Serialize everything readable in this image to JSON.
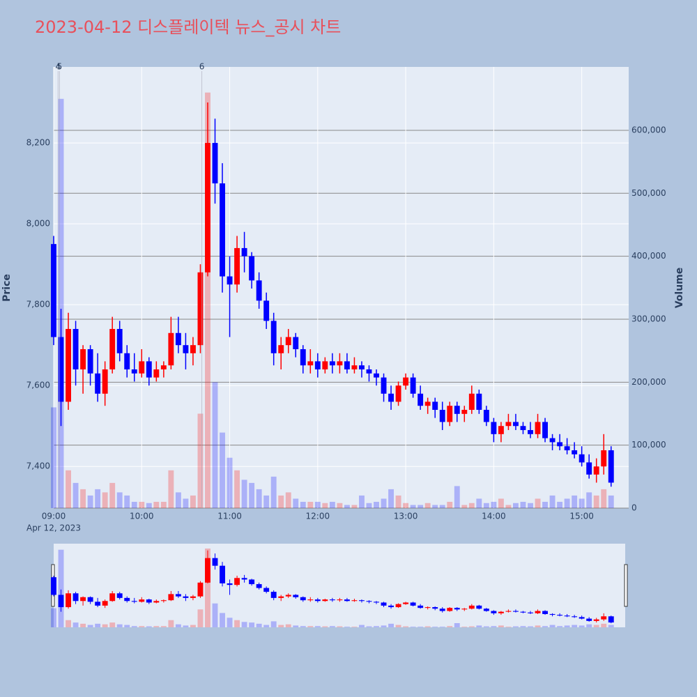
{
  "chart_data": {
    "type": "candlestick",
    "title": "2023-04-12 디스플레이텍 뉴스_공시 차트",
    "ylabel": "Price",
    "y2label": "Volume",
    "x_date_label": "Apr 12, 2023",
    "increasing_color": "#ff0000",
    "decreasing_color": "#0000ff",
    "grid": true,
    "rangeslider": true,
    "x": [
      "09:00",
      "09:05",
      "09:10",
      "09:15",
      "09:20",
      "09:25",
      "09:30",
      "09:35",
      "09:40",
      "09:45",
      "09:50",
      "09:55",
      "10:00",
      "10:05",
      "10:10",
      "10:15",
      "10:20",
      "10:25",
      "10:30",
      "10:35",
      "10:40",
      "10:45",
      "10:50",
      "10:55",
      "11:00",
      "11:05",
      "11:10",
      "11:15",
      "11:20",
      "11:25",
      "11:30",
      "11:35",
      "11:40",
      "11:45",
      "11:50",
      "11:55",
      "12:00",
      "12:05",
      "12:10",
      "12:15",
      "12:20",
      "12:25",
      "12:30",
      "12:35",
      "12:40",
      "12:45",
      "12:50",
      "12:55",
      "13:00",
      "13:05",
      "13:10",
      "13:15",
      "13:20",
      "13:25",
      "13:30",
      "13:35",
      "13:40",
      "13:45",
      "13:50",
      "13:55",
      "14:00",
      "14:05",
      "14:10",
      "14:15",
      "14:20",
      "14:25",
      "14:30",
      "14:35",
      "14:40",
      "14:45",
      "14:50",
      "14:55",
      "15:00",
      "15:05",
      "15:10",
      "15:15",
      "15:20"
    ],
    "open": [
      7950,
      7720,
      7560,
      7740,
      7640,
      7690,
      7630,
      7580,
      7640,
      7740,
      7680,
      7640,
      7630,
      7660,
      7620,
      7640,
      7650,
      7730,
      7700,
      7680,
      7700,
      7880,
      8200,
      8100,
      7870,
      7850,
      7940,
      7920,
      7860,
      7810,
      7760,
      7680,
      7700,
      7720,
      7690,
      7650,
      7660,
      7640,
      7660,
      7650,
      7660,
      7640,
      7650,
      7640,
      7630,
      7620,
      7580,
      7560,
      7600,
      7620,
      7580,
      7550,
      7560,
      7540,
      7510,
      7550,
      7530,
      7540,
      7580,
      7540,
      7510,
      7480,
      7500,
      7510,
      7500,
      7490,
      7480,
      7510,
      7470,
      7460,
      7450,
      7440,
      7430,
      7410,
      7380,
      7400,
      7440
    ],
    "high": [
      7970,
      7790,
      7780,
      7760,
      7700,
      7700,
      7680,
      7660,
      7770,
      7760,
      7700,
      7680,
      7690,
      7670,
      7660,
      7660,
      7770,
      7770,
      7730,
      7720,
      7900,
      8300,
      8260,
      8150,
      7920,
      7970,
      7980,
      7930,
      7880,
      7830,
      7780,
      7720,
      7740,
      7730,
      7700,
      7690,
      7680,
      7670,
      7680,
      7680,
      7680,
      7670,
      7660,
      7650,
      7640,
      7630,
      7600,
      7610,
      7630,
      7630,
      7600,
      7570,
      7570,
      7560,
      7560,
      7560,
      7550,
      7600,
      7590,
      7550,
      7520,
      7510,
      7530,
      7530,
      7510,
      7510,
      7530,
      7520,
      7480,
      7480,
      7470,
      7460,
      7450,
      7430,
      7420,
      7480,
      7450
    ],
    "low": [
      7700,
      7500,
      7540,
      7600,
      7580,
      7600,
      7560,
      7550,
      7630,
      7660,
      7620,
      7610,
      7620,
      7600,
      7610,
      7620,
      7640,
      7680,
      7640,
      7650,
      7680,
      7870,
      8050,
      7830,
      7720,
      7830,
      7880,
      7840,
      7790,
      7740,
      7650,
      7640,
      7680,
      7670,
      7630,
      7630,
      7620,
      7630,
      7630,
      7630,
      7630,
      7630,
      7620,
      7610,
      7600,
      7560,
      7540,
      7550,
      7590,
      7570,
      7540,
      7530,
      7520,
      7490,
      7500,
      7510,
      7510,
      7530,
      7530,
      7500,
      7460,
      7460,
      7490,
      7490,
      7480,
      7470,
      7470,
      7460,
      7440,
      7440,
      7430,
      7420,
      7400,
      7370,
      7360,
      7380,
      7350
    ],
    "close": [
      7720,
      7560,
      7740,
      7640,
      7690,
      7630,
      7580,
      7640,
      7740,
      7680,
      7640,
      7630,
      7660,
      7620,
      7640,
      7650,
      7730,
      7700,
      7680,
      7700,
      7880,
      8200,
      8100,
      7870,
      7850,
      7940,
      7920,
      7860,
      7810,
      7760,
      7680,
      7700,
      7720,
      7690,
      7650,
      7660,
      7640,
      7660,
      7650,
      7660,
      7640,
      7650,
      7640,
      7630,
      7620,
      7580,
      7560,
      7600,
      7620,
      7580,
      7550,
      7560,
      7540,
      7510,
      7550,
      7530,
      7540,
      7580,
      7540,
      7510,
      7480,
      7500,
      7510,
      7500,
      7490,
      7480,
      7510,
      7470,
      7460,
      7450,
      7440,
      7430,
      7410,
      7380,
      7400,
      7440,
      7360
    ],
    "volume": [
      160000,
      650000,
      60000,
      40000,
      30000,
      20000,
      30000,
      25000,
      40000,
      25000,
      20000,
      10000,
      10000,
      8000,
      10000,
      10000,
      60000,
      25000,
      15000,
      20000,
      150000,
      660000,
      200000,
      120000,
      80000,
      60000,
      45000,
      40000,
      30000,
      20000,
      50000,
      20000,
      25000,
      15000,
      10000,
      10000,
      10000,
      8000,
      10000,
      8000,
      5000,
      5000,
      20000,
      8000,
      10000,
      15000,
      30000,
      20000,
      8000,
      5000,
      5000,
      8000,
      5000,
      5000,
      10000,
      35000,
      5000,
      8000,
      15000,
      8000,
      10000,
      15000,
      5000,
      8000,
      10000,
      8000,
      15000,
      10000,
      20000,
      10000,
      15000,
      20000,
      15000,
      25000,
      20000,
      30000,
      20000
    ],
    "xlim": [
      "09:00",
      "15:32"
    ],
    "xticks": [
      "09:00",
      "10:00",
      "11:00",
      "12:00",
      "13:00",
      "14:00",
      "15:00"
    ],
    "ylim": [
      7297,
      8388
    ],
    "yticks": [
      {
        "value": 7400,
        "label": "7,400"
      },
      {
        "value": 7600,
        "label": "7,600"
      },
      {
        "value": 7800,
        "label": "7,800"
      },
      {
        "value": 8000,
        "label": "8,000"
      },
      {
        "value": 8200,
        "label": "8,200"
      }
    ],
    "y2lim": [
      0,
      700700
    ],
    "y2ticks": [
      0,
      {
        "value": 100000,
        "label": "100,000"
      },
      {
        "value": 200000,
        "label": "200,000"
      },
      {
        "value": 300000,
        "label": "300,000"
      },
      {
        "value": 400000,
        "label": "400,000"
      },
      {
        "value": 500000,
        "label": "500,000"
      },
      {
        "value": 600000,
        "label": "600,000"
      }
    ],
    "annotations": [
      {
        "x": "09:03",
        "text": "4"
      },
      {
        "x": "09:04",
        "text": "5"
      },
      {
        "x": "10:41",
        "text": "6"
      }
    ]
  }
}
